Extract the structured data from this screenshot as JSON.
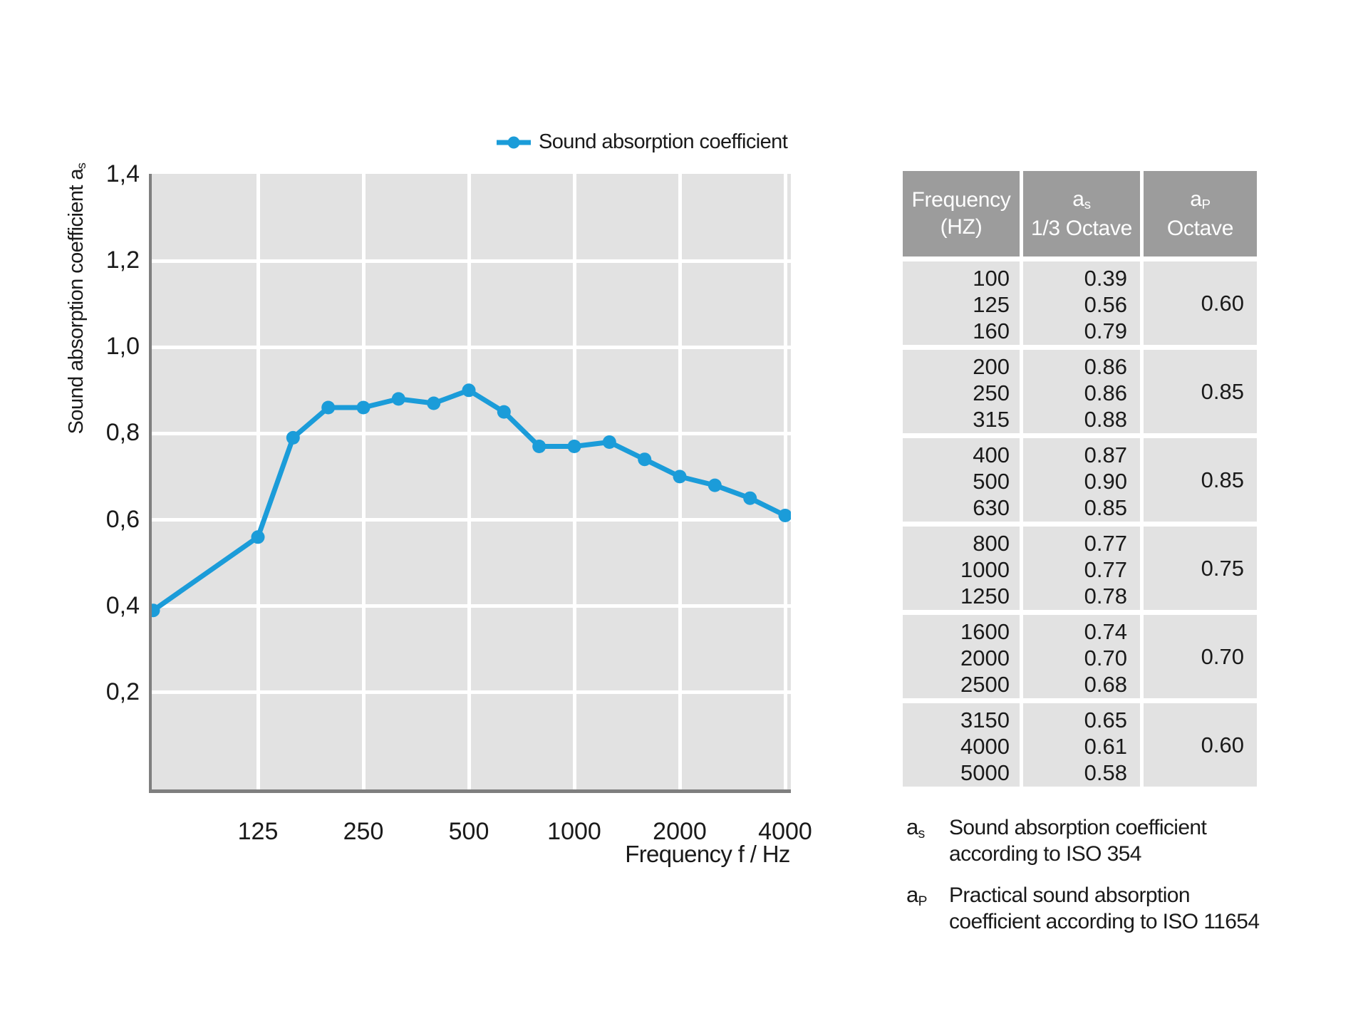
{
  "colors": {
    "accent_blue": "#1b9cd9",
    "plot_background": "#e2e2e2",
    "grid_white": "#ffffff",
    "table_header_gray": "#9c9c9c",
    "axis_gray": "#7f7f7f",
    "text_dark": "#1a1a1a"
  },
  "legend": {
    "label": "Sound absorption coefficient"
  },
  "chart_data": {
    "type": "line",
    "series_name": "Sound absorption coefficient",
    "x_axis_label": "Frequency f / Hz",
    "y_axis_label": "Sound absorption coefficient a",
    "y_axis_label_sub": "s",
    "x_scale": "logarithmic, 1/3 octave spacing",
    "ylim": [
      0,
      1.4
    ],
    "grid": "on",
    "legend_position": "top",
    "x_tick_labels": [
      "125",
      "250",
      "500",
      "1000",
      "2000",
      "4000"
    ],
    "y_tick_labels": [
      "1,4",
      "1,2",
      "1,0",
      "0,8",
      "0,6",
      "0,4",
      "0,2"
    ],
    "frequencies_hz": [
      100,
      125,
      160,
      200,
      250,
      315,
      400,
      500,
      630,
      800,
      1000,
      1250,
      1600,
      2000,
      2500,
      3150,
      4000
    ],
    "values": [
      0.39,
      0.56,
      0.79,
      0.86,
      0.86,
      0.88,
      0.87,
      0.9,
      0.85,
      0.77,
      0.77,
      0.78,
      0.74,
      0.7,
      0.68,
      0.65,
      0.61
    ]
  },
  "table": {
    "headers": [
      {
        "line1": "Frequency",
        "line1_sub": "",
        "line2": "(HZ)"
      },
      {
        "line1": "a",
        "line1_sub": "s",
        "line2": "1/3 Octave"
      },
      {
        "line1": "a",
        "line1_sub": "P",
        "line2": "Octave"
      }
    ],
    "groups": [
      {
        "frequencies": [
          "100",
          "125",
          "160"
        ],
        "as_values": [
          "0.39",
          "0.56",
          "0.79"
        ],
        "ap_value": "0.60"
      },
      {
        "frequencies": [
          "200",
          "250",
          "315"
        ],
        "as_values": [
          "0.86",
          "0.86",
          "0.88"
        ],
        "ap_value": "0.85"
      },
      {
        "frequencies": [
          "400",
          "500",
          "630"
        ],
        "as_values": [
          "0.87",
          "0.90",
          "0.85"
        ],
        "ap_value": "0.85"
      },
      {
        "frequencies": [
          "800",
          "1000",
          "1250"
        ],
        "as_values": [
          "0.77",
          "0.77",
          "0.78"
        ],
        "ap_value": "0.75"
      },
      {
        "frequencies": [
          "1600",
          "2000",
          "2500"
        ],
        "as_values": [
          "0.74",
          "0.70",
          "0.68"
        ],
        "ap_value": "0.70"
      },
      {
        "frequencies": [
          "3150",
          "4000",
          "5000"
        ],
        "as_values": [
          "0.65",
          "0.61",
          "0.58"
        ],
        "ap_value": "0.60"
      }
    ]
  },
  "footnotes": [
    {
      "symbol": "a",
      "symbol_sub": "s",
      "line1": "Sound absorption coefficient",
      "line2": "according to ISO 354"
    },
    {
      "symbol": "a",
      "symbol_sub": "P",
      "line1": "Practical sound absorption",
      "line2": "coefficient according to ISO 11654"
    }
  ]
}
